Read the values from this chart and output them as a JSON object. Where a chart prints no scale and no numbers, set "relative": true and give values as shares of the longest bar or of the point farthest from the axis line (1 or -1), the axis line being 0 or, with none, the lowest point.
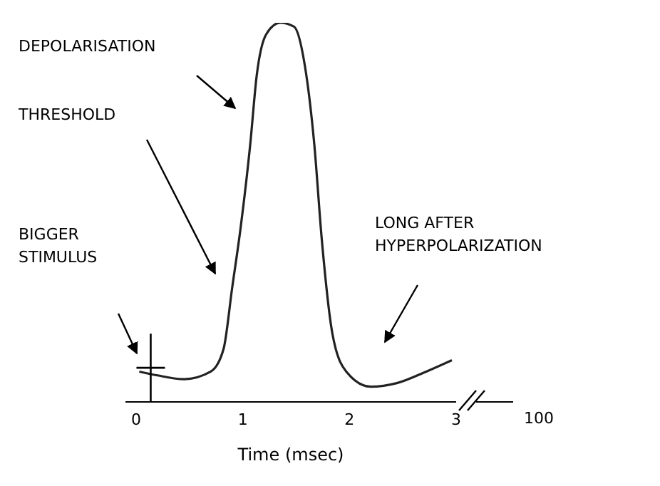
{
  "chart_data": {
    "type": "line",
    "relative": true,
    "xlabel": "Time (msec)",
    "xlim": [
      -0.1,
      3.0
    ],
    "xticks": [
      0,
      1,
      2,
      3
    ],
    "x": [
      0.03,
      0.2,
      0.45,
      0.7,
      0.82,
      0.9,
      0.98,
      1.07,
      1.13,
      1.22,
      1.35,
      1.48,
      1.58,
      1.67,
      1.74,
      1.84,
      1.97,
      2.2,
      2.45,
      2.72,
      2.96
    ],
    "series": [
      {
        "color": "#222222",
        "values": [
          0.08,
          0.07,
          0.06,
          0.08,
          0.14,
          0.3,
          0.46,
          0.68,
          0.86,
          0.97,
          1.0,
          0.99,
          0.89,
          0.68,
          0.43,
          0.18,
          0.08,
          0.04,
          0.05,
          0.08,
          0.11
        ]
      }
    ],
    "annotations": [
      "DEPOLARISATION",
      "THRESHOLD",
      "BIGGER STIMULUS",
      "LONG AFTER HYPERPOLARIZATION",
      "100"
    ],
    "grid": false,
    "legend": false,
    "marker": "none",
    "line_style": "solid"
  }
}
